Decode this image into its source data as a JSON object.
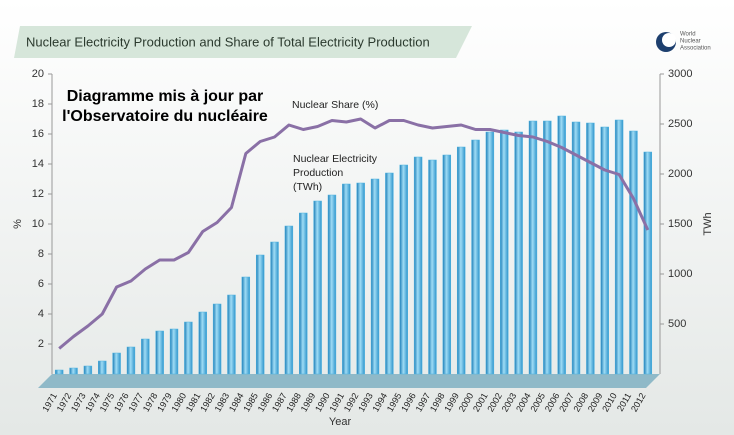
{
  "chart_data": {
    "type": "bar_line",
    "title": "Nuclear Electricity Production and Share of Total Electricity Production",
    "logo_text": [
      "World",
      "Nuclear",
      "Association"
    ],
    "annotation": [
      "Diagramme mis à jour par",
      "l'Observatoire du nucléaire"
    ],
    "line_label": "Nuclear Share (%)",
    "bar_label": [
      "Nuclear Electricity",
      "Production",
      "(TWh)"
    ],
    "x_label": "Year",
    "y_label": "%",
    "y2_label": "TWh",
    "categories": [
      "1971",
      "1972",
      "1973",
      "1974",
      "1975",
      "1976",
      "1977",
      "1978",
      "1979",
      "1980",
      "1981",
      "1982",
      "1983",
      "1984",
      "1985",
      "1986",
      "1987",
      "1988",
      "1989",
      "1990",
      "1991",
      "1992",
      "1993",
      "1994",
      "1995",
      "1996",
      "1997",
      "1998",
      "1999",
      "2000",
      "2001",
      "2002",
      "2003",
      "2004",
      "2005",
      "2006",
      "2007",
      "2008",
      "2009",
      "2010",
      "2011",
      "2012"
    ],
    "series": [
      {
        "name": "Nuclear Electricity Production (TWh)",
        "kind": "bar",
        "axis": "y2",
        "color": "#4fb3e0",
        "values": [
          40,
          60,
          80,
          130,
          210,
          270,
          350,
          430,
          450,
          520,
          620,
          700,
          790,
          970,
          1190,
          1320,
          1480,
          1610,
          1730,
          1790,
          1900,
          1910,
          1950,
          2010,
          2090,
          2170,
          2140,
          2190,
          2270,
          2340,
          2420,
          2440,
          2420,
          2530,
          2530,
          2580,
          2520,
          2510,
          2470,
          2540,
          2430,
          2220
        ]
      },
      {
        "name": "Nuclear Share (%)",
        "kind": "line",
        "axis": "y",
        "color": "#8a70a6",
        "values": [
          1.7,
          2.5,
          3.2,
          4.0,
          5.8,
          6.2,
          7.0,
          7.6,
          7.6,
          8.1,
          9.5,
          10.1,
          11.1,
          14.7,
          15.5,
          15.8,
          16.6,
          16.3,
          16.5,
          16.9,
          16.8,
          17.0,
          16.4,
          16.9,
          16.9,
          16.6,
          16.4,
          16.5,
          16.6,
          16.3,
          16.3,
          16.1,
          15.9,
          15.8,
          15.5,
          15.1,
          14.6,
          14.1,
          13.6,
          13.3,
          11.7,
          9.6
        ]
      }
    ],
    "ylim": [
      0,
      20
    ],
    "yticks": [
      2,
      4,
      6,
      8,
      10,
      12,
      14,
      16,
      18,
      20
    ],
    "y2lim": [
      0,
      3000
    ],
    "y2ticks": [
      500,
      1000,
      1500,
      2000,
      2500,
      3000
    ]
  }
}
